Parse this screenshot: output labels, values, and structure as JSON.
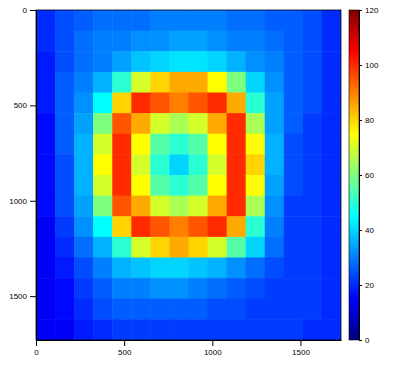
{
  "chart_data": {
    "type": "heatmap",
    "xlim": [
      0,
      1730
    ],
    "ylim": [
      0,
      1730
    ],
    "xticks": [
      0,
      500,
      1000,
      1500
    ],
    "yticks": [
      0,
      500,
      1000,
      1500
    ],
    "z": [
      [
        20,
        24,
        26,
        28,
        28,
        28,
        30,
        30,
        30,
        30,
        28,
        28,
        26,
        26,
        24,
        20
      ],
      [
        20,
        24,
        28,
        30,
        30,
        32,
        32,
        34,
        34,
        32,
        30,
        30,
        28,
        26,
        24,
        20
      ],
      [
        18,
        24,
        28,
        30,
        34,
        38,
        40,
        42,
        42,
        40,
        36,
        32,
        30,
        26,
        24,
        20
      ],
      [
        18,
        26,
        30,
        36,
        50,
        70,
        80,
        85,
        85,
        75,
        60,
        40,
        32,
        26,
        24,
        20
      ],
      [
        18,
        26,
        32,
        45,
        80,
        100,
        95,
        90,
        95,
        100,
        85,
        50,
        34,
        26,
        24,
        20
      ],
      [
        16,
        26,
        34,
        60,
        95,
        85,
        70,
        65,
        70,
        85,
        100,
        65,
        34,
        26,
        22,
        20
      ],
      [
        16,
        26,
        36,
        70,
        100,
        75,
        55,
        50,
        55,
        75,
        100,
        75,
        36,
        24,
        22,
        20
      ],
      [
        16,
        24,
        36,
        75,
        100,
        70,
        50,
        40,
        50,
        70,
        100,
        80,
        36,
        24,
        22,
        20
      ],
      [
        16,
        24,
        36,
        70,
        100,
        75,
        55,
        50,
        55,
        75,
        100,
        75,
        34,
        24,
        22,
        20
      ],
      [
        16,
        24,
        34,
        60,
        95,
        85,
        70,
        65,
        70,
        85,
        100,
        65,
        32,
        22,
        22,
        20
      ],
      [
        14,
        22,
        32,
        45,
        80,
        100,
        95,
        90,
        95,
        100,
        85,
        50,
        30,
        22,
        22,
        20
      ],
      [
        14,
        20,
        28,
        36,
        50,
        70,
        80,
        85,
        80,
        70,
        55,
        40,
        28,
        22,
        22,
        20
      ],
      [
        14,
        18,
        24,
        30,
        36,
        38,
        40,
        40,
        38,
        36,
        32,
        28,
        24,
        22,
        22,
        20
      ],
      [
        14,
        16,
        22,
        26,
        30,
        30,
        32,
        32,
        30,
        28,
        26,
        24,
        22,
        22,
        22,
        20
      ],
      [
        14,
        16,
        20,
        24,
        26,
        26,
        26,
        26,
        26,
        24,
        24,
        22,
        22,
        22,
        22,
        20
      ],
      [
        14,
        14,
        18,
        20,
        22,
        22,
        22,
        22,
        22,
        22,
        22,
        22,
        22,
        22,
        20,
        20
      ]
    ],
    "colorbar": {
      "range": [
        0,
        120
      ],
      "ticks": [
        0,
        20,
        40,
        60,
        80,
        100,
        120
      ]
    }
  }
}
